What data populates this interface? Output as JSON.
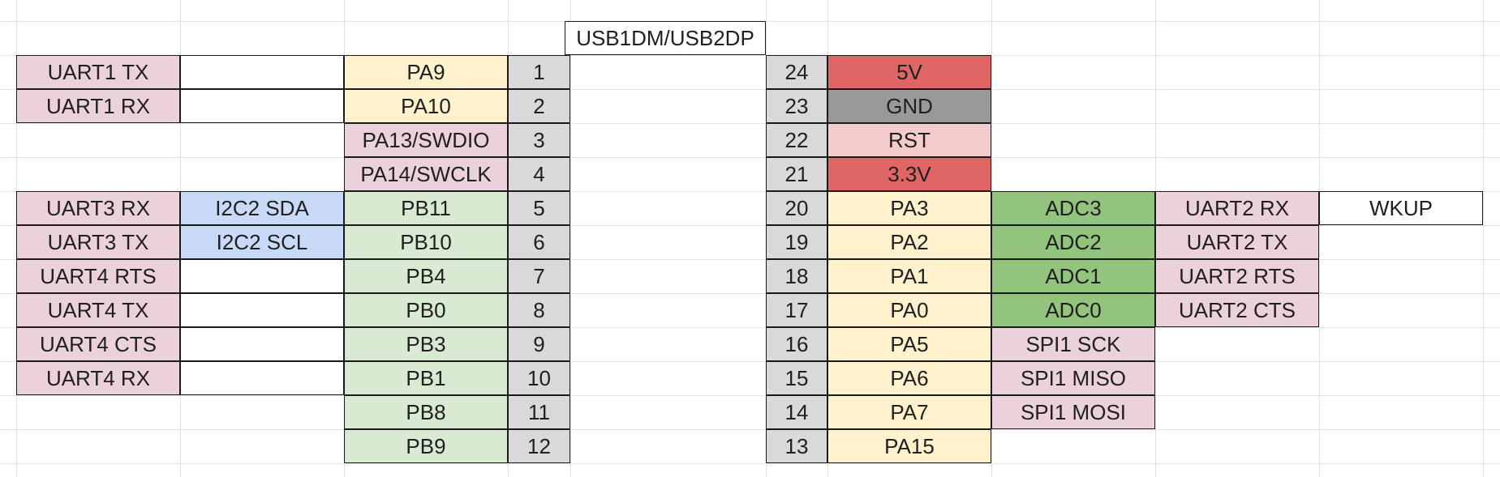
{
  "header": {
    "usb_label": "USB1DM/USB2DP"
  },
  "colors": {
    "pink": "#ead1dc",
    "yellow": "#fff2cc",
    "green_light": "#d9ead3",
    "green_dark": "#93c47d",
    "blue": "#c9daf8",
    "gray_pin": "#d9d9d9",
    "gray_dark": "#999999",
    "red": "#e06666",
    "pink_red": "#f4cccc",
    "white": "#ffffff"
  },
  "left_rows": [
    {
      "func1": "UART1 TX",
      "func2": "",
      "pin": "PA9",
      "num": "1",
      "pin_color": "yellow"
    },
    {
      "func1": "UART1 RX",
      "func2": "",
      "pin": "PA10",
      "num": "2",
      "pin_color": "yellow"
    },
    {
      "func1": "",
      "func2": "",
      "pin": "PA13/SWDIO",
      "num": "3",
      "pin_color": "pink"
    },
    {
      "func1": "",
      "func2": "",
      "pin": "PA14/SWCLK",
      "num": "4",
      "pin_color": "pink"
    },
    {
      "func1": "UART3 RX",
      "func2": "I2C2 SDA",
      "pin": "PB11",
      "num": "5",
      "pin_color": "green_light"
    },
    {
      "func1": "UART3 TX",
      "func2": "I2C2 SCL",
      "pin": "PB10",
      "num": "6",
      "pin_color": "green_light"
    },
    {
      "func1": "UART4 RTS",
      "func2": "",
      "pin": "PB4",
      "num": "7",
      "pin_color": "green_light"
    },
    {
      "func1": "UART4 TX",
      "func2": "",
      "pin": "PB0",
      "num": "8",
      "pin_color": "green_light"
    },
    {
      "func1": "UART4 CTS",
      "func2": "",
      "pin": "PB3",
      "num": "9",
      "pin_color": "green_light"
    },
    {
      "func1": "UART4 RX",
      "func2": "",
      "pin": "PB1",
      "num": "10",
      "pin_color": "green_light"
    },
    {
      "func1": "",
      "func2": "",
      "pin": "PB8",
      "num": "11",
      "pin_color": "green_light"
    },
    {
      "func1": "",
      "func2": "",
      "pin": "PB9",
      "num": "12",
      "pin_color": "green_light"
    }
  ],
  "right_rows": [
    {
      "num": "24",
      "pin": "5V",
      "pin_color": "red",
      "func1": "",
      "func1_color": "",
      "func2": "",
      "func3": ""
    },
    {
      "num": "23",
      "pin": "GND",
      "pin_color": "gray_dark",
      "func1": "",
      "func1_color": "",
      "func2": "",
      "func3": ""
    },
    {
      "num": "22",
      "pin": "RST",
      "pin_color": "pink_red",
      "func1": "",
      "func1_color": "",
      "func2": "",
      "func3": ""
    },
    {
      "num": "21",
      "pin": "3.3V",
      "pin_color": "red",
      "func1": "",
      "func1_color": "",
      "func2": "",
      "func3": ""
    },
    {
      "num": "20",
      "pin": "PA3",
      "pin_color": "yellow",
      "func1": "ADC3",
      "func1_color": "green_dark",
      "func2": "UART2 RX",
      "func3": "WKUP"
    },
    {
      "num": "19",
      "pin": "PA2",
      "pin_color": "yellow",
      "func1": "ADC2",
      "func1_color": "green_dark",
      "func2": "UART2 TX",
      "func3": ""
    },
    {
      "num": "18",
      "pin": "PA1",
      "pin_color": "yellow",
      "func1": "ADC1",
      "func1_color": "green_dark",
      "func2": "UART2 RTS",
      "func3": ""
    },
    {
      "num": "17",
      "pin": "PA0",
      "pin_color": "yellow",
      "func1": "ADC0",
      "func1_color": "green_dark",
      "func2": "UART2 CTS",
      "func3": ""
    },
    {
      "num": "16",
      "pin": "PA5",
      "pin_color": "yellow",
      "func1": "SPI1 SCK",
      "func1_color": "pink",
      "func2": "",
      "func3": ""
    },
    {
      "num": "15",
      "pin": "PA6",
      "pin_color": "yellow",
      "func1": "SPI1 MISO",
      "func1_color": "pink",
      "func2": "",
      "func3": ""
    },
    {
      "num": "14",
      "pin": "PA7",
      "pin_color": "yellow",
      "func1": "SPI1 MOSI",
      "func1_color": "pink",
      "func2": "",
      "func3": ""
    },
    {
      "num": "13",
      "pin": "PA15",
      "pin_color": "yellow",
      "func1": "",
      "func1_color": "",
      "func2": "",
      "func3": ""
    }
  ]
}
